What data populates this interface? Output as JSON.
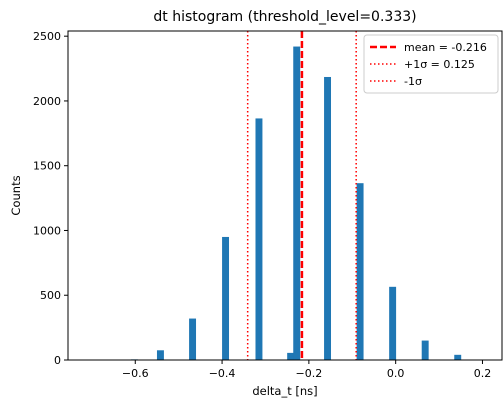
{
  "chart_data": {
    "type": "bar",
    "title": "dt histogram (threshold_level=0.333)",
    "xlabel": "delta_t [ns]",
    "ylabel": "Counts",
    "xlim": [
      -0.755,
      0.245
    ],
    "ylim": [
      0,
      2540
    ],
    "xticks": [
      -0.6,
      -0.4,
      -0.2,
      0.0,
      0.2
    ],
    "yticks": [
      0,
      500,
      1000,
      1500,
      2000,
      2500
    ],
    "bar_width": 0.016,
    "bars": [
      {
        "x": -0.602,
        "value": 5
      },
      {
        "x": -0.542,
        "value": 75
      },
      {
        "x": -0.468,
        "value": 320
      },
      {
        "x": -0.392,
        "value": 950
      },
      {
        "x": -0.315,
        "value": 1865
      },
      {
        "x": -0.242,
        "value": 55
      },
      {
        "x": -0.228,
        "value": 2420
      },
      {
        "x": -0.157,
        "value": 2185
      },
      {
        "x": -0.082,
        "value": 1365
      },
      {
        "x": -0.007,
        "value": 565
      },
      {
        "x": 0.068,
        "value": 150
      },
      {
        "x": 0.143,
        "value": 40
      }
    ],
    "lines": [
      {
        "name": "mean = -0.216",
        "x": -0.216,
        "color": "#ff0000",
        "style": "dashed"
      },
      {
        "name": "+1σ = 0.125",
        "x": -0.091,
        "color": "#ff0000",
        "style": "dotted"
      },
      {
        "name": "-1σ",
        "x": -0.341,
        "color": "#ff0000",
        "style": "dotted"
      }
    ],
    "bar_color": "#1f77b4",
    "legend_position": "top-right",
    "grid": false
  }
}
